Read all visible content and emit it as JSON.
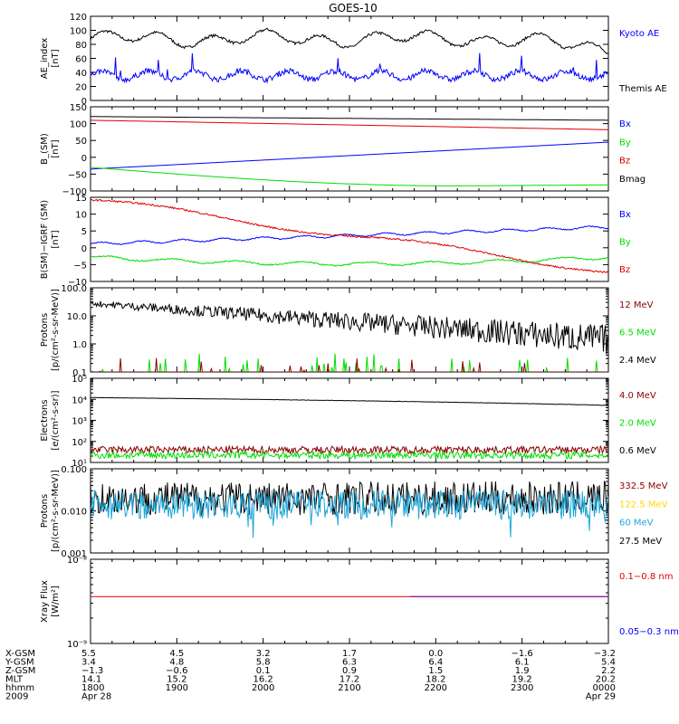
{
  "title": "GOES-10",
  "colors": {
    "black": "#000000",
    "blue": "#0000ff",
    "green": "#00dd00",
    "red": "#dd0000",
    "darkred": "#8b0000",
    "yellow": "#ffd700",
    "cyan": "#1fa6d8",
    "purple": "#6a0dad"
  },
  "time_axis": {
    "range": [
      "1800",
      "0000"
    ],
    "ticks": [
      "1800",
      "1900",
      "2000",
      "2100",
      "2200",
      "2300",
      "0000"
    ]
  },
  "panels": [
    {
      "id": "ae",
      "ylabel_lines": [
        "AE_index",
        "[nT]"
      ],
      "scale": "linear",
      "ylim": [
        0,
        120
      ],
      "ticks": [
        "0",
        "20",
        "40",
        "60",
        "80",
        "100",
        "120"
      ],
      "legend": [
        {
          "label": "Kyoto AE",
          "color": "#0000ff"
        },
        {
          "label": "Themis AE",
          "color": "#000000"
        }
      ]
    },
    {
      "id": "b-sm",
      "ylabel_lines": [
        "B_(SM)",
        "[nT]"
      ],
      "scale": "linear",
      "ylim": [
        -100,
        150
      ],
      "ticks": [
        "−100",
        "−50",
        "0",
        "50",
        "100",
        "150"
      ],
      "legend": [
        {
          "label": "Bx",
          "color": "#0000ff"
        },
        {
          "label": "By",
          "color": "#00dd00"
        },
        {
          "label": "Bz",
          "color": "#dd0000"
        },
        {
          "label": "Bmag",
          "color": "#000000"
        }
      ]
    },
    {
      "id": "b-igrf",
      "ylabel_lines": [
        "B(SM)−IGRF (SM)",
        "[nT]"
      ],
      "scale": "linear",
      "ylim": [
        -10,
        15
      ],
      "ticks": [
        "−10",
        "−5",
        "0",
        "5",
        "10",
        "15"
      ],
      "legend": [
        {
          "label": "Bx",
          "color": "#0000ff"
        },
        {
          "label": "By",
          "color": "#00dd00"
        },
        {
          "label": "Bz",
          "color": "#dd0000"
        }
      ]
    },
    {
      "id": "protons-low",
      "ylabel_lines": [
        "Protons",
        "[p/(cm²-s-sr-MeV)]"
      ],
      "scale": "log",
      "ylim": [
        0.1,
        100
      ],
      "ticks": [
        "0.1",
        "1.0",
        "10.0",
        "100.0"
      ],
      "legend": [
        {
          "label": "12 MeV",
          "color": "#8b0000"
        },
        {
          "label": "6.5 MeV",
          "color": "#00dd00"
        },
        {
          "label": "2.4 MeV",
          "color": "#000000"
        }
      ]
    },
    {
      "id": "electrons",
      "ylabel_lines": [
        "Electrons",
        "[e/(cm²-s-sr)]"
      ],
      "scale": "log",
      "ylim": [
        10,
        100000
      ],
      "ticks": [
        "10¹",
        "10²",
        "10³",
        "10⁴",
        "10⁵"
      ],
      "legend": [
        {
          "label": "4.0 MeV",
          "color": "#8b0000"
        },
        {
          "label": "2.0 MeV",
          "color": "#00dd00"
        },
        {
          "label": "0.6 MeV",
          "color": "#000000"
        }
      ]
    },
    {
      "id": "protons-high",
      "ylabel_lines": [
        "Protons",
        "[p/(cm²-s-sr-MeV)]"
      ],
      "scale": "log",
      "ylim": [
        0.001,
        0.1
      ],
      "ticks": [
        "0.001",
        "0.010",
        "0.100"
      ],
      "legend": [
        {
          "label": "332.5 MeV",
          "color": "#8b0000"
        },
        {
          "label": "122.5 MeV",
          "color": "#ffd700"
        },
        {
          "label": "60 MeV",
          "color": "#1fa6d8"
        },
        {
          "label": "27.5 MeV",
          "color": "#000000"
        }
      ]
    },
    {
      "id": "xray",
      "ylabel_lines": [
        "Xray Flux",
        "[W/m²]"
      ],
      "scale": "log",
      "ylim": [
        1e-09,
        1e-08
      ],
      "ticks": [
        "10⁻⁹",
        "10⁻⁸"
      ],
      "legend": [
        {
          "label": "0.1−0.8 nm",
          "color": "#dd0000"
        },
        {
          "label": "0.05−0.3 nm",
          "color": "#0000ff"
        }
      ]
    }
  ],
  "ephemeris": {
    "rows": [
      {
        "label": "X-GSM",
        "values": [
          "5.5",
          "4.5",
          "3.2",
          "1.7",
          "0.0",
          "−1.6",
          "−3.2"
        ]
      },
      {
        "label": "Y-GSM",
        "values": [
          "3.4",
          "4.8",
          "5.8",
          "6.3",
          "6.4",
          "6.1",
          "5.4"
        ]
      },
      {
        "label": "Z-GSM",
        "values": [
          "−1.3",
          "−0.6",
          "0.1",
          "0.9",
          "1.5",
          "1.9",
          "2.2"
        ]
      },
      {
        "label": "MLT",
        "values": [
          "14.1",
          "15.2",
          "16.2",
          "17.2",
          "18.2",
          "19.2",
          "20.2"
        ]
      },
      {
        "label": "hhmm",
        "values": [
          "1800",
          "1900",
          "2000",
          "2100",
          "2200",
          "2300",
          "0000"
        ]
      }
    ],
    "year_label": "2009",
    "date_start": "Apr 28",
    "date_end": "Apr 29"
  },
  "chart_data": {
    "type": "line",
    "title": "GOES-10",
    "x_unit": "UT hhmm",
    "x": [
      "1800",
      "1900",
      "2000",
      "2100",
      "2200",
      "2300",
      "0000"
    ],
    "panels": [
      {
        "ylabel": "AE_index [nT]",
        "ylim": [
          0,
          120
        ],
        "series": [
          {
            "name": "Themis AE",
            "values": [
              82,
              88,
              90,
              88,
              86,
              84,
              70
            ]
          },
          {
            "name": "Kyoto AE",
            "values": [
              35,
              38,
              30,
              28,
              38,
              32,
              28
            ]
          }
        ]
      },
      {
        "ylabel": "B_(SM) [nT]",
        "ylim": [
          -100,
          150
        ],
        "series": [
          {
            "name": "Bx",
            "values": [
              -35,
              -25,
              -12,
              2,
              15,
              30,
              45
            ]
          },
          {
            "name": "By",
            "values": [
              -30,
              -55,
              -70,
              -78,
              -80,
              -75,
              -70
            ]
          },
          {
            "name": "Bz",
            "values": [
              110,
              105,
              100,
              96,
              92,
              88,
              82
            ]
          },
          {
            "name": "Bmag",
            "values": [
              121,
              120,
              119,
              117,
              114,
              112,
              110
            ]
          }
        ]
      },
      {
        "ylabel": "B(SM)−IGRF (SM) [nT]",
        "ylim": [
          -10,
          15
        ],
        "series": [
          {
            "name": "Bx",
            "values": [
              1,
              2,
              3,
              4,
              5,
              5.5,
              6
            ]
          },
          {
            "name": "By",
            "values": [
              -3,
              -4,
              -5,
              -5,
              -4,
              -3,
              -3
            ]
          },
          {
            "name": "Bz",
            "values": [
              14,
              11,
              8,
              4,
              0,
              -4,
              -7
            ]
          }
        ]
      },
      {
        "ylabel": "Protons [p/(cm²-s-sr-MeV)]",
        "ylim": [
          0.1,
          100
        ],
        "scale": "log",
        "series": [
          {
            "name": "2.4 MeV",
            "values": [
              30,
              20,
              12,
              8,
              5,
              2,
              1.5
            ]
          },
          {
            "name": "6.5 MeV",
            "values": [
              0.1,
              0.1,
              0.1,
              0.1,
              0.1,
              0.1,
              0.1
            ]
          },
          {
            "name": "12 MeV",
            "values": [
              0.1,
              0.1,
              0.1,
              0.1,
              0.1,
              0.1,
              0.1
            ]
          }
        ]
      },
      {
        "ylabel": "Electrons [e/(cm²-s-sr)]",
        "ylim": [
          10,
          100000
        ],
        "scale": "log",
        "series": [
          {
            "name": "0.6 MeV",
            "values": [
              12000,
              10000,
              9000,
              8000,
              7000,
              6000,
              5000
            ]
          },
          {
            "name": "2.0 MeV",
            "values": [
              25,
              25,
              25,
              25,
              25,
              25,
              25
            ]
          },
          {
            "name": "4.0 MeV",
            "values": [
              45,
              45,
              45,
              45,
              45,
              45,
              45
            ]
          }
        ]
      },
      {
        "ylabel": "Protons [p/(cm²-s-sr-MeV)]",
        "ylim": [
          0.001,
          0.1
        ],
        "scale": "log",
        "series": [
          {
            "name": "27.5 MeV",
            "values": [
              0.018,
              0.02,
              0.019,
              0.02,
              0.019,
              0.02,
              0.02
            ]
          },
          {
            "name": "60 MeV",
            "values": [
              0.013,
              0.014,
              0.014,
              0.014,
              0.014,
              0.014,
              0.014
            ]
          },
          {
            "name": "122.5 MeV",
            "values": [
              null,
              null,
              null,
              null,
              null,
              null,
              null
            ]
          },
          {
            "name": "332.5 MeV",
            "values": [
              null,
              null,
              null,
              null,
              null,
              null,
              null
            ]
          }
        ]
      },
      {
        "ylabel": "Xray Flux [W/m²]",
        "ylim": [
          1e-09,
          1e-08
        ],
        "scale": "log",
        "series": [
          {
            "name": "0.1−0.8 nm",
            "values": [
              3.6e-09,
              3.6e-09,
              3.6e-09,
              3.6e-09,
              3.6e-09,
              3.6e-09,
              3.6e-09
            ]
          },
          {
            "name": "0.05−0.3 nm",
            "values": [
              null,
              null,
              null,
              null,
              3.6e-09,
              3.6e-09,
              3.6e-09
            ]
          }
        ]
      }
    ]
  }
}
